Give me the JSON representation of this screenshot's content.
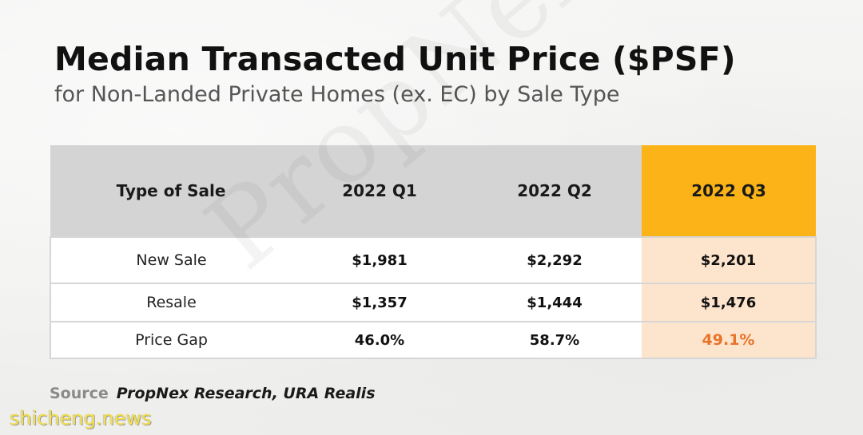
{
  "header": {
    "title": "Median Transacted Unit Price ($PSF)",
    "subtitle": "for Non-Landed Private Homes (ex. EC) by Sale Type"
  },
  "watermark": "PropNex.com",
  "site_mark": "shicheng.news",
  "colors": {
    "header_gray": "#d4d4d4",
    "highlight_header": "#fbb317",
    "highlight_cell": "#fde4cc",
    "accent_text": "#e8742a"
  },
  "chart_data": {
    "type": "table",
    "columns": [
      "Type of Sale",
      "2022 Q1",
      "2022 Q2",
      "2022 Q3"
    ],
    "highlighted_column": "2022 Q3",
    "rows": [
      {
        "label": "New Sale",
        "values": [
          "$1,981",
          "$2,292",
          "$2,201"
        ]
      },
      {
        "label": "Resale",
        "values": [
          "$1,357",
          "$1,444",
          "$1,476"
        ]
      },
      {
        "label": "Price Gap",
        "values": [
          "46.0%",
          "58.7%",
          "49.1%"
        ]
      }
    ]
  },
  "source": {
    "label": "Source",
    "value": "PropNex Research, URA Realis"
  }
}
